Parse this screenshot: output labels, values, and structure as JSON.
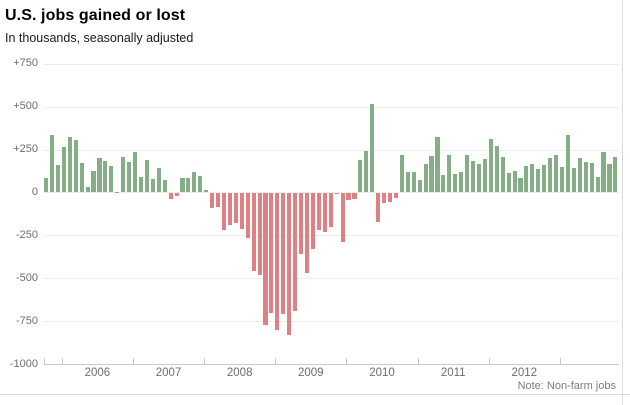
{
  "header": {
    "title": "U.S. jobs gained or lost",
    "subtitle": "In thousands, seasonally adjusted"
  },
  "footer": {
    "note": "Note: Non-farm jobs"
  },
  "colors": {
    "positive_bar": "#85ae87",
    "negative_bar": "#dd8184",
    "gridline": "#ededed",
    "axis_line": "#c9c9c9",
    "axis_label": "#6e6e6e",
    "note_text": "#7d7d7d",
    "divider": "#dcdcdc"
  },
  "chart_data": {
    "type": "bar",
    "title": "U.S. jobs gained or lost",
    "subtitle": "In thousands, seasonally adjusted",
    "unit": "thousands of jobs, seasonally adjusted",
    "ylim": [
      -1000,
      750
    ],
    "grid": true,
    "y_axis": {
      "ticks": [
        {
          "label": "+750",
          "value": 750
        },
        {
          "label": "+500",
          "value": 500
        },
        {
          "label": "+250",
          "value": 250
        },
        {
          "label": "0",
          "value": 0
        },
        {
          "label": "-250",
          "value": -250
        },
        {
          "label": "-500",
          "value": -500
        },
        {
          "label": "-750",
          "value": -750
        },
        {
          "label": "-1000",
          "value": -1000
        }
      ]
    },
    "x_axis": {
      "years": [
        "2006",
        "2007",
        "2008",
        "2009",
        "2010",
        "2011",
        "2012"
      ],
      "start_month": "2005-10",
      "end_month": "2013-10"
    },
    "months": [
      "2005-10",
      "2005-11",
      "2005-12",
      "2006-01",
      "2006-02",
      "2006-03",
      "2006-04",
      "2006-05",
      "2006-06",
      "2006-07",
      "2006-08",
      "2006-09",
      "2006-10",
      "2006-11",
      "2006-12",
      "2007-01",
      "2007-02",
      "2007-03",
      "2007-04",
      "2007-05",
      "2007-06",
      "2007-07",
      "2007-08",
      "2007-09",
      "2007-10",
      "2007-11",
      "2007-12",
      "2008-01",
      "2008-02",
      "2008-03",
      "2008-04",
      "2008-05",
      "2008-06",
      "2008-07",
      "2008-08",
      "2008-09",
      "2008-10",
      "2008-11",
      "2008-12",
      "2009-01",
      "2009-02",
      "2009-03",
      "2009-04",
      "2009-05",
      "2009-06",
      "2009-07",
      "2009-08",
      "2009-09",
      "2009-10",
      "2009-11",
      "2009-12",
      "2010-01",
      "2010-02",
      "2010-03",
      "2010-04",
      "2010-05",
      "2010-06",
      "2010-07",
      "2010-08",
      "2010-09",
      "2010-10",
      "2010-11",
      "2010-12",
      "2011-01",
      "2011-02",
      "2011-03",
      "2011-04",
      "2011-05",
      "2011-06",
      "2011-07",
      "2011-08",
      "2011-09",
      "2011-10",
      "2011-11",
      "2011-12",
      "2012-01",
      "2012-02",
      "2012-03",
      "2012-04",
      "2012-05",
      "2012-06",
      "2012-07",
      "2012-08",
      "2012-09",
      "2012-10",
      "2012-11",
      "2012-12",
      "2013-01",
      "2013-02",
      "2013-03",
      "2013-04",
      "2013-05",
      "2013-06",
      "2013-07",
      "2013-08",
      "2013-09",
      "2013-10"
    ],
    "values": [
      84,
      334,
      158,
      262,
      326,
      304,
      174,
      31,
      124,
      203,
      186,
      157,
      2,
      205,
      176,
      238,
      88,
      188,
      78,
      144,
      71,
      -33,
      -16,
      85,
      82,
      118,
      97,
      15,
      -86,
      -80,
      -214,
      -182,
      -172,
      -210,
      -259,
      -452,
      -474,
      -765,
      -697,
      -798,
      -701,
      -826,
      -684,
      -354,
      -467,
      -327,
      -216,
      -227,
      -198,
      -6,
      -283,
      -40,
      -35,
      189,
      239,
      516,
      -167,
      -58,
      -51,
      -27,
      220,
      121,
      120,
      70,
      168,
      212,
      322,
      102,
      217,
      106,
      122,
      221,
      183,
      164,
      196,
      311,
      271,
      205,
      112,
      125,
      87,
      153,
      165,
      138,
      160,
      203,
      219,
      148,
      332,
      142,
      199,
      176,
      172,
      89,
      238,
      163,
      204
    ],
    "legend": null,
    "note": "Note: Non-farm jobs"
  }
}
